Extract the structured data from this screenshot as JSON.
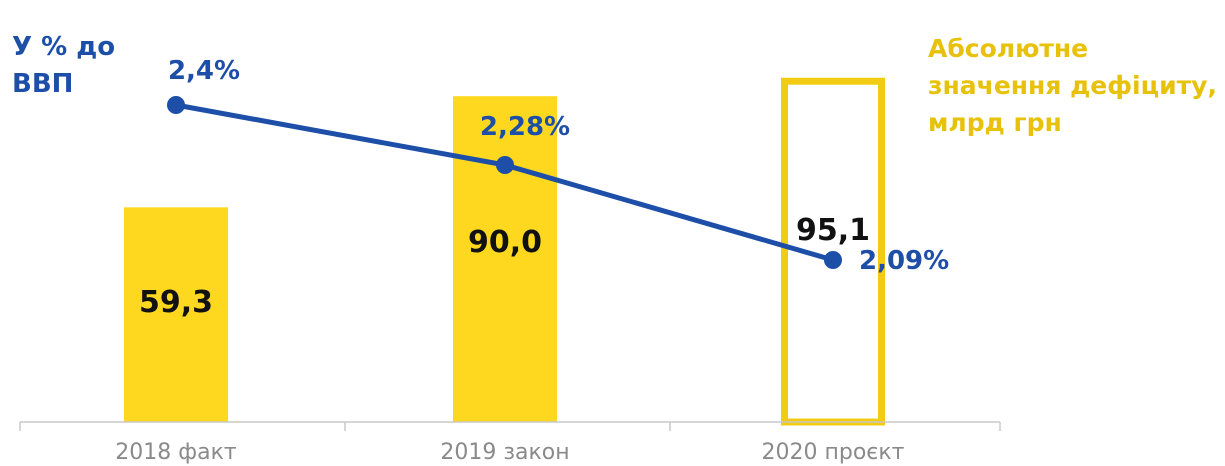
{
  "chart_data": {
    "type": "bar",
    "categories": [
      "2018 факт",
      "2019 закон",
      "2020 проєкт"
    ],
    "left_title_lines": [
      "У % до",
      "ВВП"
    ],
    "right_title_lines": [
      "Абсолютне",
      "значення дефіциту,",
      "млрд грн"
    ],
    "series": [
      {
        "type": "bar",
        "values": [
          59.3,
          90.0,
          95.1
        ],
        "value_labels": [
          "59,3",
          "90,0",
          "95,1"
        ],
        "styles": [
          "filled",
          "filled",
          "outline"
        ],
        "color": "#fdd81e"
      },
      {
        "type": "line",
        "values": [
          2.4,
          2.28,
          2.09
        ],
        "value_labels": [
          "2,4%",
          "2,28%",
          "2,09%"
        ],
        "color": "#1d4fa8"
      }
    ],
    "ylim_bar": [
      0,
      100
    ],
    "ylim_line": [
      1.77,
      2.52
    ],
    "grid": false,
    "axis_color": "#c8c8c8",
    "text_color": "#111111",
    "tick_color": "#8a8a8a",
    "outline_color": "#f2cc12"
  }
}
